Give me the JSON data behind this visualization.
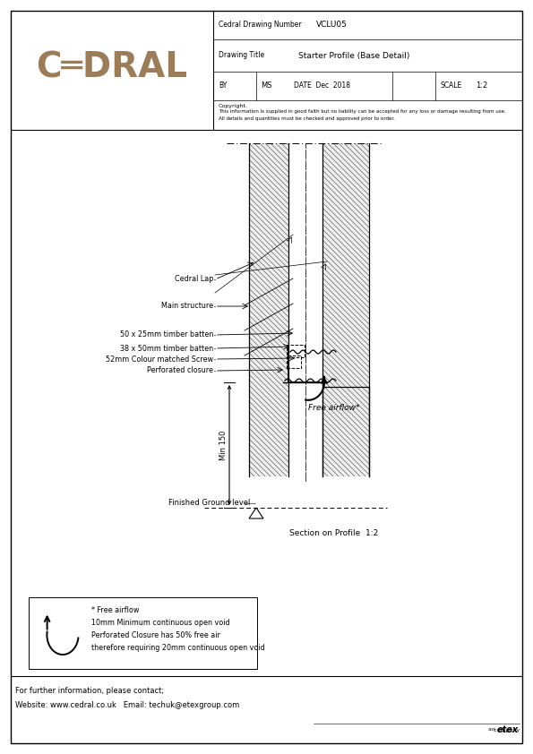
{
  "page_bg": "#ffffff",
  "logo_color": "#9B7D5A",
  "drawing_number": "VCLU05",
  "drawing_title": "Starter Profile (Base Detail)",
  "by_label": "BY",
  "by_val": "MS",
  "date_label": "DATE",
  "date_val": "Dec  2018",
  "scale_label": "SCALE",
  "scale_val": "1:2",
  "dn_label": "Cedral Drawing Number",
  "title_label": "Drawing Title",
  "copyright_title": "Copyright.",
  "copyright_body": "This information is supplied in good faith but no liability can be accepted for any loss or damage resulting from use.\nAll details and quantities must be checked and approved prior to order.",
  "labels": [
    "Cedral Lap",
    "Main structure",
    "50 x 25mm timber batten",
    "38 x 50mm timber batten",
    "52mm Colour matched Screw",
    "Perforated closure"
  ],
  "footer_note_lines": [
    "* Free airflow",
    "10mm Minimum continuous open void",
    "Perforated Closure has 50% free air",
    "therefore requiring 20mm continuous open void"
  ],
  "contact_line1": "For further information, please contact;",
  "contact_line2": "Website: www.cedral.co.uk   Email: techuk@etexgroup.com",
  "section_label": "Section on Profile  1:2",
  "ground_label": "Finished Ground level",
  "min150_label": "Min 150",
  "free_airflow_label": "Free airflow*"
}
